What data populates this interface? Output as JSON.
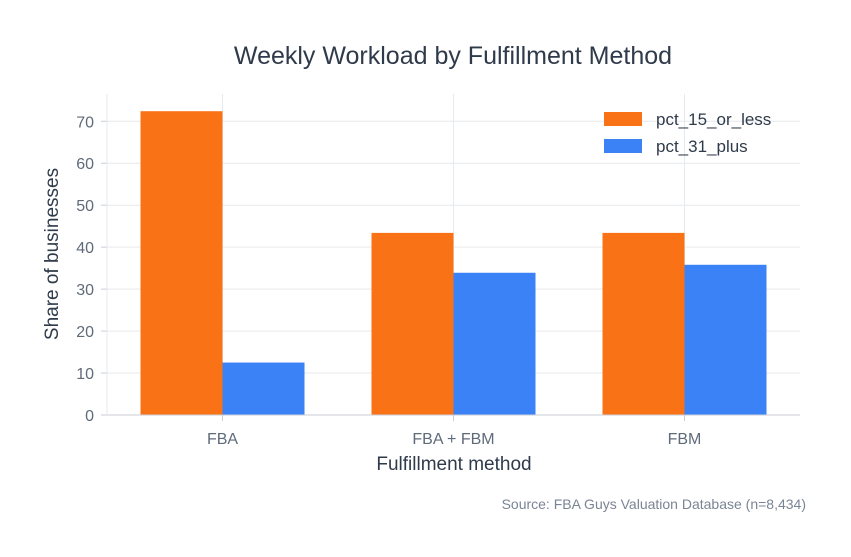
{
  "chart_data": {
    "type": "bar",
    "title": "Weekly Workload by Fulfillment Method",
    "xlabel": "Fulfillment method",
    "ylabel": "Share of businesses",
    "categories": [
      "FBA",
      "FBA + FBM",
      "FBM"
    ],
    "series": [
      {
        "name": "pct_15_or_less",
        "values": [
          72.4,
          43.4,
          43.4
        ],
        "color": "#f97316"
      },
      {
        "name": "pct_31_plus",
        "values": [
          12.5,
          33.9,
          35.8
        ],
        "color": "#3b82f6"
      }
    ],
    "ylim": [
      0,
      76.5
    ],
    "yticks": [
      0,
      10,
      20,
      30,
      40,
      50,
      60,
      70
    ],
    "grid": true,
    "legend_position": "top-right",
    "source": "Source: FBA Guys Valuation Database (n=8,434)"
  }
}
